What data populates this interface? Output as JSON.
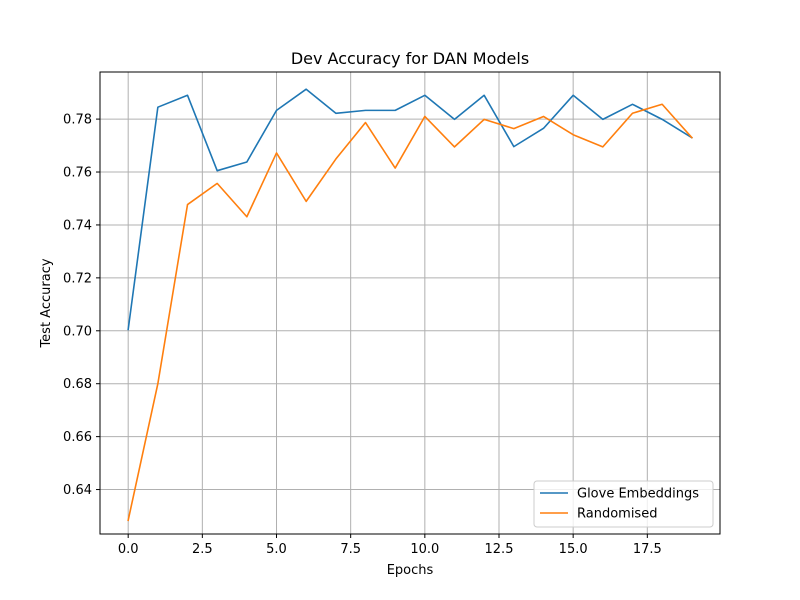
{
  "chart_data": {
    "type": "line",
    "title": "Dev Accuracy for DAN Models",
    "xlabel": "Epochs",
    "ylabel": "Test Accuracy",
    "grid": true,
    "legend_position": "bottom-right",
    "xlim": [
      -0.95,
      19.95
    ],
    "ylim": [
      0.6232,
      0.7978
    ],
    "xticks": [
      0.0,
      2.5,
      5.0,
      7.5,
      10.0,
      12.5,
      15.0,
      17.5
    ],
    "xtick_labels": [
      "0.0",
      "2.5",
      "5.0",
      "7.5",
      "10.0",
      "12.5",
      "15.0",
      "17.5"
    ],
    "yticks": [
      0.64,
      0.66,
      0.68,
      0.7,
      0.72,
      0.74,
      0.76,
      0.78
    ],
    "ytick_labels": [
      "0.64",
      "0.66",
      "0.68",
      "0.70",
      "0.72",
      "0.74",
      "0.76",
      "0.78"
    ],
    "x": [
      0,
      1,
      2,
      3,
      4,
      5,
      6,
      7,
      8,
      9,
      10,
      11,
      12,
      13,
      14,
      15,
      16,
      17,
      18,
      19
    ],
    "series": [
      {
        "name": "Glove Embeddings",
        "color": "#1f77b4",
        "values": [
          0.7005,
          0.7845,
          0.789,
          0.7605,
          0.7638,
          0.7833,
          0.7913,
          0.7822,
          0.7833,
          0.7833,
          0.789,
          0.7799,
          0.789,
          0.7696,
          0.7765,
          0.789,
          0.7799,
          0.7856,
          0.7799,
          0.773
        ]
      },
      {
        "name": "Randomised",
        "color": "#ff7f0e",
        "values": [
          0.6284,
          0.68,
          0.7477,
          0.7557,
          0.7431,
          0.7672,
          0.7489,
          0.7649,
          0.7787,
          0.7615,
          0.781,
          0.7695,
          0.7799,
          0.7764,
          0.781,
          0.7741,
          0.7695,
          0.7822,
          0.7856,
          0.773
        ]
      }
    ]
  }
}
